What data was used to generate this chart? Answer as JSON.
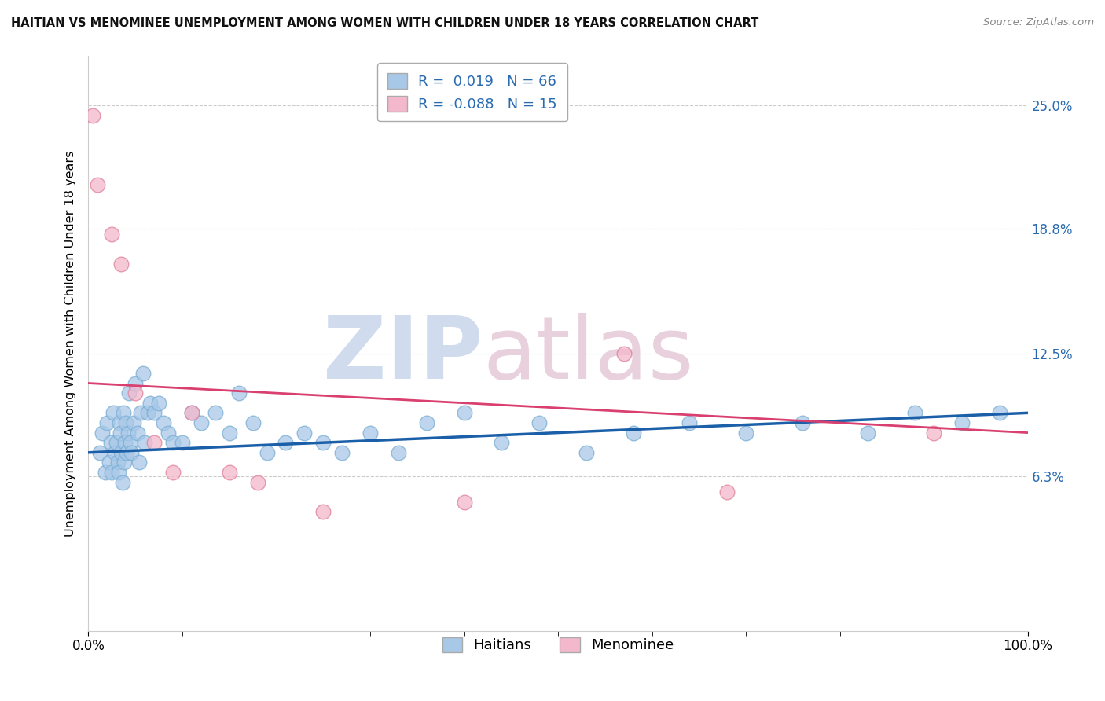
{
  "title": "HAITIAN VS MENOMINEE UNEMPLOYMENT AMONG WOMEN WITH CHILDREN UNDER 18 YEARS CORRELATION CHART",
  "source": "Source: ZipAtlas.com",
  "ylabel": "Unemployment Among Women with Children Under 18 years",
  "xlim": [
    0.0,
    100.0
  ],
  "ylim": [
    -1.5,
    27.5
  ],
  "ytick_vals": [
    0.0,
    6.3,
    12.5,
    18.8,
    25.0
  ],
  "right_ytick_labels": [
    "",
    "6.3%",
    "12.5%",
    "18.8%",
    "25.0%"
  ],
  "xticks": [
    0.0,
    100.0
  ],
  "xtick_labels": [
    "0.0%",
    "100.0%"
  ],
  "haitian_R": 0.019,
  "haitian_N": 66,
  "menominee_R": -0.088,
  "menominee_N": 15,
  "haitian_color": "#a8c8e8",
  "haitian_edge_color": "#7aaed4",
  "haitian_line_color": "#1a5fa8",
  "menominee_color": "#f4b8cc",
  "menominee_edge_color": "#e08098",
  "menominee_line_color": "#d94070",
  "background_color": "#ffffff",
  "grid_color": "#cccccc",
  "right_tick_color": "#2a6bb0",
  "haitian_x": [
    1.2,
    1.5,
    1.8,
    2.0,
    2.2,
    2.4,
    2.5,
    2.6,
    2.8,
    3.0,
    3.1,
    3.2,
    3.3,
    3.4,
    3.5,
    3.6,
    3.7,
    3.8,
    3.9,
    4.0,
    4.1,
    4.2,
    4.3,
    4.5,
    4.6,
    4.8,
    5.0,
    5.2,
    5.4,
    5.6,
    5.8,
    6.0,
    6.3,
    6.6,
    7.0,
    7.5,
    8.0,
    8.5,
    9.0,
    10.0,
    11.0,
    12.0,
    13.5,
    15.0,
    16.0,
    17.5,
    19.0,
    21.0,
    23.0,
    25.0,
    27.0,
    30.0,
    33.0,
    36.0,
    40.0,
    44.0,
    48.0,
    53.0,
    58.0,
    64.0,
    70.0,
    76.0,
    83.0,
    88.0,
    93.0,
    97.0
  ],
  "haitian_y": [
    7.5,
    8.5,
    6.5,
    9.0,
    7.0,
    8.0,
    6.5,
    9.5,
    7.5,
    8.0,
    7.0,
    6.5,
    9.0,
    8.5,
    7.5,
    6.0,
    9.5,
    7.0,
    8.0,
    9.0,
    7.5,
    8.5,
    10.5,
    8.0,
    7.5,
    9.0,
    11.0,
    8.5,
    7.0,
    9.5,
    11.5,
    8.0,
    9.5,
    10.0,
    9.5,
    10.0,
    9.0,
    8.5,
    8.0,
    8.0,
    9.5,
    9.0,
    9.5,
    8.5,
    10.5,
    9.0,
    7.5,
    8.0,
    8.5,
    8.0,
    7.5,
    8.5,
    7.5,
    9.0,
    9.5,
    8.0,
    9.0,
    7.5,
    8.5,
    9.0,
    8.5,
    9.0,
    8.5,
    9.5,
    9.0,
    9.5
  ],
  "menominee_x": [
    0.5,
    1.0,
    2.5,
    3.5,
    5.0,
    7.0,
    9.0,
    11.0,
    15.0,
    18.0,
    25.0,
    40.0,
    57.0,
    68.0,
    90.0
  ],
  "menominee_y": [
    24.5,
    21.0,
    18.5,
    17.0,
    10.5,
    8.0,
    6.5,
    9.5,
    6.5,
    6.0,
    4.5,
    5.0,
    12.5,
    5.5,
    8.5
  ],
  "haitian_line_x0": 0.0,
  "haitian_line_x1": 100.0,
  "haitian_line_y0": 7.5,
  "haitian_line_y1": 9.5,
  "menominee_line_x0": 0.0,
  "menominee_line_x1": 100.0,
  "menominee_line_y0": 11.0,
  "menominee_line_y1": 8.5
}
